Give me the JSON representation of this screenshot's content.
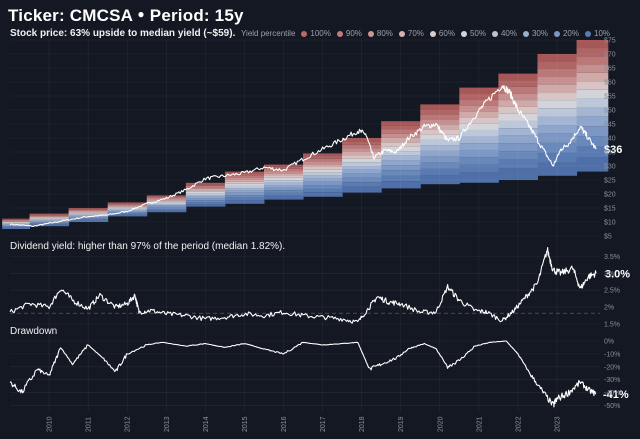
{
  "header": {
    "title_ticker": "Ticker: CMCSA",
    "title_sep": "●",
    "title_period": "Period: 15y",
    "subtitle": "Stock price:  63% upside to median yield (~$59)."
  },
  "legend": {
    "title": "Yield percentile",
    "items": [
      {
        "label": "100%",
        "color": "#b86a6a"
      },
      {
        "label": "90%",
        "color": "#c27b7b"
      },
      {
        "label": "80%",
        "color": "#cc9696"
      },
      {
        "label": "70%",
        "color": "#d8b0b0"
      },
      {
        "label": "60%",
        "color": "#d9cccc"
      },
      {
        "label": "50%",
        "color": "#d4d4d8"
      },
      {
        "label": "40%",
        "color": "#b9c4d6"
      },
      {
        "label": "30%",
        "color": "#9aaed0"
      },
      {
        "label": "20%",
        "color": "#7c97c4"
      },
      {
        "label": "10%",
        "color": "#5a7bb2"
      }
    ]
  },
  "panels": {
    "yield_title": "Dividend yield: higher than 97% of the period (median 1.82%).",
    "drawdown_title": "Drawdown"
  },
  "chart_data": [
    {
      "type": "area",
      "name": "price",
      "ylim": [
        5,
        75
      ],
      "yticks": [
        "$5",
        "$10",
        "$15",
        "$20",
        "$25",
        "$30",
        "$35",
        "$40",
        "$45",
        "$50",
        "$55",
        "$60",
        "$65",
        "$70",
        "$75"
      ],
      "ytick_values": [
        5,
        10,
        15,
        20,
        25,
        30,
        35,
        40,
        45,
        50,
        55,
        60,
        65,
        70,
        75
      ],
      "last_value_label": "$36",
      "price_points": [
        [
          2009.0,
          9.2
        ],
        [
          2009.6,
          8.5
        ],
        [
          2010.0,
          9.5
        ],
        [
          2010.5,
          10.8
        ],
        [
          2011.0,
          12.0
        ],
        [
          2011.5,
          12.5
        ],
        [
          2012.0,
          13.8
        ],
        [
          2012.5,
          16.5
        ],
        [
          2013.0,
          18.5
        ],
        [
          2013.5,
          21.5
        ],
        [
          2014.0,
          25.5
        ],
        [
          2014.5,
          26.5
        ],
        [
          2015.0,
          27.5
        ],
        [
          2015.5,
          29.5
        ],
        [
          2016.0,
          28.5
        ],
        [
          2016.5,
          32.5
        ],
        [
          2017.0,
          36.0
        ],
        [
          2017.5,
          39.5
        ],
        [
          2017.9,
          42.5
        ],
        [
          2018.1,
          41.5
        ],
        [
          2018.3,
          33.0
        ],
        [
          2018.6,
          35.5
        ],
        [
          2018.9,
          35.0
        ],
        [
          2019.2,
          40.0
        ],
        [
          2019.6,
          44.0
        ],
        [
          2019.9,
          45.0
        ],
        [
          2020.2,
          39.0
        ],
        [
          2020.5,
          40.0
        ],
        [
          2020.9,
          48.0
        ],
        [
          2021.2,
          53.0
        ],
        [
          2021.6,
          59.0
        ],
        [
          2021.8,
          56.0
        ],
        [
          2022.0,
          50.0
        ],
        [
          2022.3,
          44.0
        ],
        [
          2022.6,
          37.0
        ],
        [
          2022.9,
          30.0
        ],
        [
          2023.1,
          36.0
        ],
        [
          2023.3,
          38.0
        ],
        [
          2023.6,
          44.0
        ],
        [
          2023.75,
          41.0
        ],
        [
          2024.0,
          36.0
        ]
      ],
      "band_steps": [
        {
          "x": [
            2008.8,
            2009.5
          ],
          "bottom": 7.5,
          "top": 11.2
        },
        {
          "x": [
            2009.5,
            2010.5
          ],
          "bottom": 8.5,
          "top": 13.0
        },
        {
          "x": [
            2010.5,
            2011.5
          ],
          "bottom": 10.0,
          "top": 15.0
        },
        {
          "x": [
            2011.5,
            2012.5
          ],
          "bottom": 12.0,
          "top": 17.0
        },
        {
          "x": [
            2012.5,
            2013.5
          ],
          "bottom": 13.5,
          "top": 19.5
        },
        {
          "x": [
            2013.5,
            2014.5
          ],
          "bottom": 15.5,
          "top": 24.0
        },
        {
          "x": [
            2014.5,
            2015.5
          ],
          "bottom": 16.5,
          "top": 28.0
        },
        {
          "x": [
            2015.5,
            2016.5
          ],
          "bottom": 18.0,
          "top": 30.5
        },
        {
          "x": [
            2016.5,
            2017.5
          ],
          "bottom": 19.0,
          "top": 34.5
        },
        {
          "x": [
            2017.5,
            2018.5
          ],
          "bottom": 20.5,
          "top": 40.0
        },
        {
          "x": [
            2018.5,
            2019.5
          ],
          "bottom": 22.0,
          "top": 46.0
        },
        {
          "x": [
            2019.5,
            2020.5
          ],
          "bottom": 23.5,
          "top": 52.0
        },
        {
          "x": [
            2020.5,
            2021.5
          ],
          "bottom": 24.0,
          "top": 58.0
        },
        {
          "x": [
            2021.5,
            2022.5
          ],
          "bottom": 25.0,
          "top": 63.0
        },
        {
          "x": [
            2022.5,
            2023.5
          ],
          "bottom": 26.5,
          "top": 70.0
        },
        {
          "x": [
            2023.5,
            2024.3
          ],
          "bottom": 28.0,
          "top": 75.0
        }
      ]
    },
    {
      "type": "line",
      "name": "dividend_yield",
      "ylim": [
        1.5,
        3.6
      ],
      "yticks": [
        "1.5%",
        "2%",
        "2.5%",
        "3%",
        "3.5%"
      ],
      "ytick_values": [
        1.5,
        2.0,
        2.5,
        3.0,
        3.5
      ],
      "median": 1.82,
      "last_value_label": "3.0%",
      "points": [
        [
          2009.0,
          1.85
        ],
        [
          2009.5,
          2.1
        ],
        [
          2010.0,
          2.0
        ],
        [
          2010.3,
          2.55
        ],
        [
          2010.6,
          2.2
        ],
        [
          2011.0,
          1.95
        ],
        [
          2011.3,
          2.35
        ],
        [
          2011.7,
          2.0
        ],
        [
          2012.0,
          2.1
        ],
        [
          2012.2,
          2.35
        ],
        [
          2012.3,
          1.85
        ],
        [
          2012.6,
          1.9
        ],
        [
          2013.0,
          1.8
        ],
        [
          2013.5,
          1.75
        ],
        [
          2014.0,
          1.65
        ],
        [
          2014.5,
          1.7
        ],
        [
          2015.0,
          1.8
        ],
        [
          2015.5,
          1.75
        ],
        [
          2016.0,
          1.85
        ],
        [
          2016.5,
          1.75
        ],
        [
          2017.0,
          1.7
        ],
        [
          2017.5,
          1.65
        ],
        [
          2017.9,
          1.55
        ],
        [
          2018.2,
          2.0
        ],
        [
          2018.4,
          2.3
        ],
        [
          2018.7,
          2.15
        ],
        [
          2019.0,
          2.1
        ],
        [
          2019.5,
          1.85
        ],
        [
          2019.9,
          1.85
        ],
        [
          2020.2,
          2.6
        ],
        [
          2020.5,
          2.2
        ],
        [
          2020.9,
          1.9
        ],
        [
          2021.2,
          1.85
        ],
        [
          2021.6,
          1.6
        ],
        [
          2021.9,
          1.9
        ],
        [
          2022.2,
          2.3
        ],
        [
          2022.5,
          2.7
        ],
        [
          2022.75,
          3.7
        ],
        [
          2022.9,
          3.1
        ],
        [
          2023.1,
          3.0
        ],
        [
          2023.4,
          3.15
        ],
        [
          2023.6,
          2.55
        ],
        [
          2023.8,
          2.9
        ],
        [
          2024.0,
          3.0
        ]
      ]
    },
    {
      "type": "area",
      "name": "drawdown",
      "ylim": [
        -52,
        0
      ],
      "yticks": [
        "0%",
        "-10%",
        "-20%",
        "-30%",
        "-40%",
        "-50%"
      ],
      "ytick_values": [
        0,
        -10,
        -20,
        -30,
        -40,
        -50
      ],
      "last_value_label": "-41%",
      "points": [
        [
          2009.0,
          -32
        ],
        [
          2009.3,
          -40
        ],
        [
          2009.7,
          -22
        ],
        [
          2010.0,
          -27
        ],
        [
          2010.3,
          -5
        ],
        [
          2010.6,
          -18
        ],
        [
          2011.0,
          -3
        ],
        [
          2011.4,
          -14
        ],
        [
          2011.7,
          -24
        ],
        [
          2012.0,
          -10
        ],
        [
          2012.5,
          -3
        ],
        [
          2012.9,
          -1
        ],
        [
          2013.5,
          -4
        ],
        [
          2014.0,
          -2
        ],
        [
          2014.5,
          -5
        ],
        [
          2015.0,
          -2
        ],
        [
          2015.6,
          -7
        ],
        [
          2016.0,
          -10
        ],
        [
          2016.5,
          -1
        ],
        [
          2017.0,
          -3
        ],
        [
          2017.5,
          -2
        ],
        [
          2017.9,
          -1
        ],
        [
          2018.2,
          -22
        ],
        [
          2018.5,
          -18
        ],
        [
          2018.9,
          -13
        ],
        [
          2019.2,
          -6
        ],
        [
          2019.6,
          -2
        ],
        [
          2019.9,
          -6
        ],
        [
          2020.2,
          -20
        ],
        [
          2020.5,
          -15
        ],
        [
          2020.9,
          -4
        ],
        [
          2021.3,
          -1
        ],
        [
          2021.7,
          0
        ],
        [
          2022.0,
          -10
        ],
        [
          2022.3,
          -25
        ],
        [
          2022.6,
          -38
        ],
        [
          2022.9,
          -50
        ],
        [
          2023.0,
          -45
        ],
        [
          2023.3,
          -40
        ],
        [
          2023.6,
          -32
        ],
        [
          2023.8,
          -38
        ],
        [
          2024.0,
          -41
        ]
      ]
    }
  ],
  "x_axis": {
    "labels": [
      "2010",
      "2011",
      "2012",
      "2013",
      "2014",
      "2015",
      "2016",
      "2017",
      "2018",
      "2019",
      "2020",
      "2021",
      "2022",
      "2023"
    ],
    "values": [
      2010,
      2011,
      2012,
      2013,
      2014,
      2015,
      2016,
      2017,
      2018,
      2019,
      2020,
      2021,
      2022,
      2023
    ],
    "xlim": [
      2009.0,
      2024.1
    ]
  }
}
